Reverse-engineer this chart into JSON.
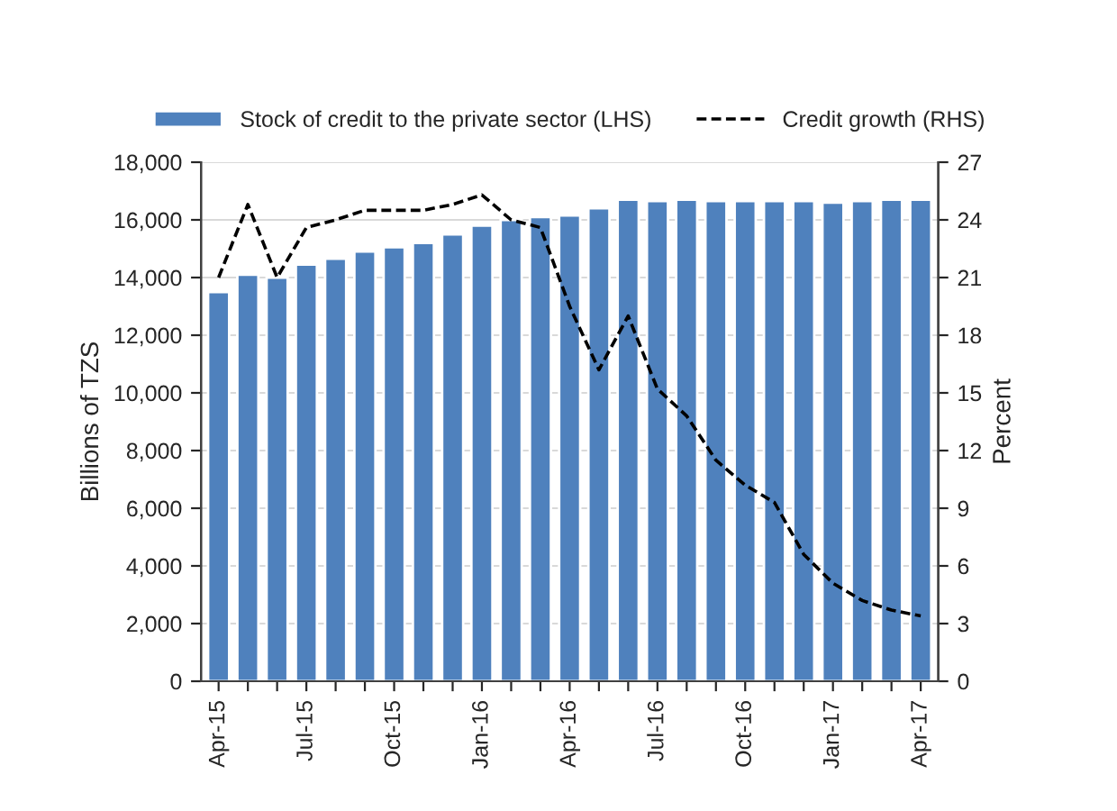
{
  "chart_data": {
    "type": "bar",
    "categories": [
      "Apr-15",
      null,
      null,
      "Jul-15",
      null,
      null,
      "Oct-15",
      null,
      null,
      "Jan-16",
      null,
      null,
      "Apr-16",
      null,
      null,
      "Jul-16",
      null,
      null,
      "Oct-16",
      null,
      null,
      "Jan-17",
      null,
      null,
      "Apr-17"
    ],
    "series": [
      {
        "name": "Stock of credit to the private sector (LHS)",
        "color": "#4f81bd",
        "values": [
          13500,
          14100,
          14000,
          14450,
          14650,
          14900,
          15050,
          15200,
          15500,
          15800,
          16000,
          16100,
          16150,
          16400,
          16700,
          16650,
          16700,
          16650,
          16650,
          16650,
          16650,
          16600,
          16650,
          16700,
          16700
        ]
      },
      {
        "name": "Credit growth (RHS)",
        "type": "line",
        "axis": "y2",
        "color": "#000000",
        "line_style": "dashed",
        "values": [
          21.0,
          24.8,
          21.0,
          23.6,
          24.0,
          24.5,
          24.5,
          24.5,
          24.8,
          25.3,
          24.0,
          23.6,
          19.5,
          16.2,
          19.0,
          15.2,
          13.8,
          11.5,
          10.2,
          9.3,
          6.6,
          5.1,
          4.2,
          3.7,
          3.4
        ]
      }
    ],
    "ylabel": "Billions of TZS",
    "y2label": "Percent",
    "ylim": [
      0,
      18000
    ],
    "yticks": [
      {
        "value": 0,
        "label": "0"
      },
      {
        "value": 2000,
        "label": "2,000"
      },
      {
        "value": 4000,
        "label": "4,000"
      },
      {
        "value": 6000,
        "label": "6,000"
      },
      {
        "value": 8000,
        "label": "8,000"
      },
      {
        "value": 10000,
        "label": "10,000"
      },
      {
        "value": 12000,
        "label": "12,000"
      },
      {
        "value": 14000,
        "label": "14,000"
      },
      {
        "value": 16000,
        "label": "16,000"
      },
      {
        "value": 18000,
        "label": "18,000"
      }
    ],
    "y2lim": [
      0,
      27
    ],
    "y2ticks": [
      0,
      3,
      6,
      9,
      12,
      15,
      18,
      21,
      24,
      27
    ],
    "grid": "y",
    "legend": "top"
  }
}
